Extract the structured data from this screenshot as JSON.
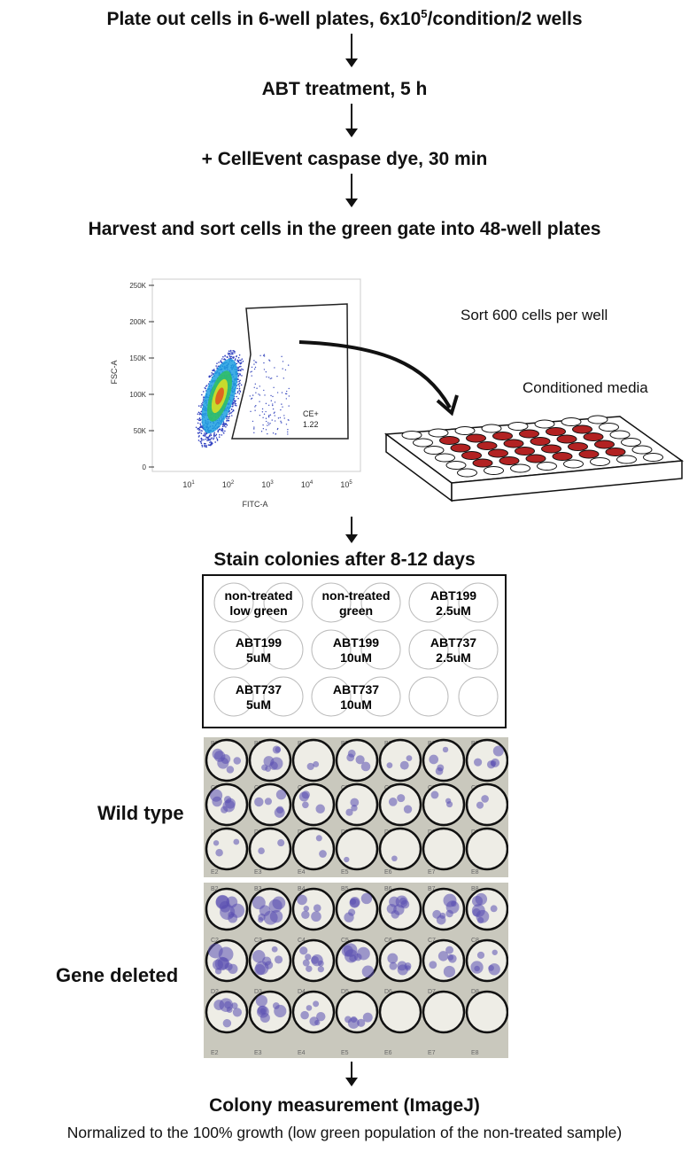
{
  "steps": {
    "step1_a": "Plate out cells in 6-well plates, 6x10",
    "step1_sup": "5",
    "step1_b": "/condition/2 wells",
    "step2": "ABT treatment, 5 h",
    "step3": "+ CellEvent caspase dye, 30 min",
    "step4": "Harvest and sort cells in the green gate into 48-well plates",
    "step5": "Stain colonies after 8-12 days",
    "step6": "Colony measurement (ImageJ)",
    "step6_note": "Normalized to the 100% growth (low green population of the non-treated sample)"
  },
  "flow_plot": {
    "y_label": "FSC-A",
    "x_label": "FITC-A",
    "y_ticks": [
      "0",
      "50K",
      "100K",
      "150K",
      "200K",
      "250K"
    ],
    "x_ticks": [
      "10",
      "10",
      "10",
      "10",
      "10"
    ],
    "x_tick_exp": [
      "1",
      "2",
      "3",
      "4",
      "5"
    ],
    "gate_name": "CE+",
    "gate_value": "1.22"
  },
  "sort_label": "Sort 600 cells per well",
  "conditioned_label": "Conditioned media",
  "layout_box": {
    "wells": [
      {
        "l1": "non-treated",
        "l2": "low green"
      },
      {
        "l1": "non-treated",
        "l2": "green"
      },
      {
        "l1": "ABT199",
        "l2": "2.5uM"
      },
      {
        "l1": "ABT199",
        "l2": "5uM"
      },
      {
        "l1": "ABT199",
        "l2": "10uM"
      },
      {
        "l1": "ABT737",
        "l2": "2.5uM"
      },
      {
        "l1": "ABT737",
        "l2": "5uM"
      },
      {
        "l1": "ABT737",
        "l2": "10uM"
      },
      {
        "l1": "",
        "l2": ""
      }
    ]
  },
  "photos": [
    {
      "label": "Wild type",
      "rows": [
        "B",
        "C",
        "D"
      ],
      "next_row": "E",
      "cols": [
        "2",
        "3",
        "4",
        "5",
        "6",
        "7",
        "8"
      ],
      "stain": [
        [
          0.6,
          0.7,
          0.2,
          0.4,
          0.3,
          0.4,
          0.5
        ],
        [
          0.6,
          0.5,
          0.4,
          0.3,
          0.3,
          0.3,
          0.2
        ],
        [
          0.3,
          0.2,
          0.2,
          0.1,
          0.05,
          0,
          0
        ]
      ]
    },
    {
      "label": "Gene deleted",
      "rows": [
        "B",
        "C",
        "D"
      ],
      "next_row": "E",
      "cols": [
        "2",
        "3",
        "4",
        "5",
        "6",
        "7",
        "8"
      ],
      "stain": [
        [
          0.8,
          0.8,
          0.5,
          0.6,
          0.7,
          0.7,
          0.7
        ],
        [
          0.8,
          0.7,
          0.8,
          0.7,
          0.6,
          0.6,
          0.6
        ],
        [
          0.7,
          0.7,
          0.6,
          0.5,
          0,
          0,
          0
        ]
      ]
    }
  ],
  "colors": {
    "stain": "#5a4fb0",
    "media": "#b22222",
    "text": "#111111"
  }
}
